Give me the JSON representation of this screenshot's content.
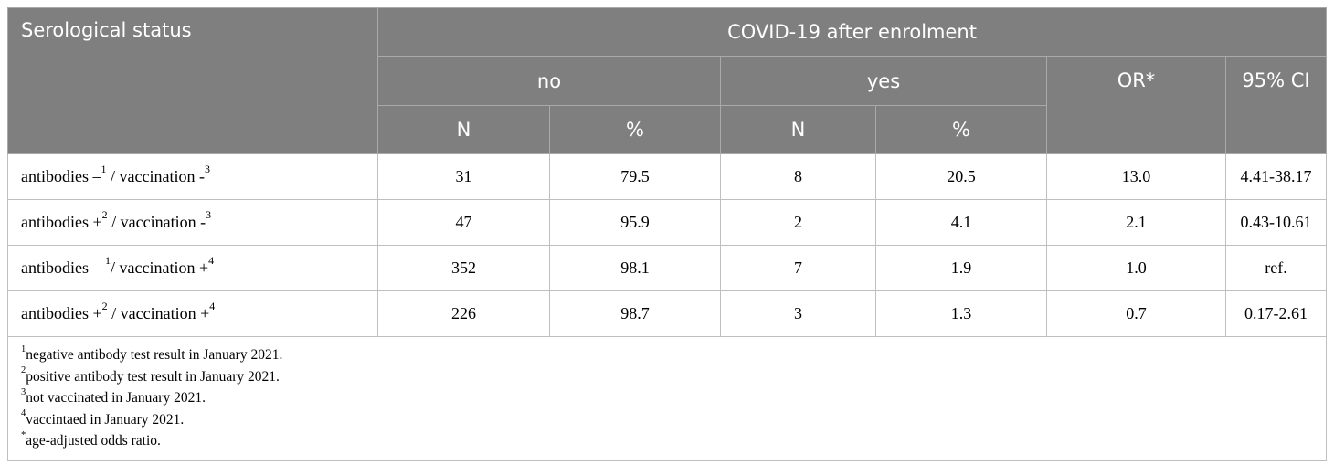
{
  "table": {
    "header": {
      "row_label": "Serological status",
      "group_label": "COVID-19 after enrolment",
      "no_label": "no",
      "yes_label": "yes",
      "or_label": "OR*",
      "ci_label": "95% CI",
      "n_label": "N",
      "pct_label": "%"
    },
    "rows": [
      {
        "ab": "antibodies –",
        "ab_sup": "1",
        "vac": " / vaccination -",
        "vac_sup": "3",
        "no_n": "31",
        "no_pct": "79.5",
        "yes_n": "8",
        "yes_pct": "20.5",
        "or": "13.0",
        "ci": "4.41-38.17"
      },
      {
        "ab": "antibodies +",
        "ab_sup": "2",
        "vac": " / vaccination -",
        "vac_sup": "3",
        "no_n": "47",
        "no_pct": "95.9",
        "yes_n": "2",
        "yes_pct": "4.1",
        "or": "2.1",
        "ci": "0.43-10.61"
      },
      {
        "ab": "antibodies – ",
        "ab_sup": "1",
        "vac": "/ vaccination +",
        "vac_sup": "4",
        "no_n": "352",
        "no_pct": "98.1",
        "yes_n": "7",
        "yes_pct": "1.9",
        "or": "1.0",
        "ci": "ref."
      },
      {
        "ab": "antibodies +",
        "ab_sup": "2",
        "vac": " / vaccination +",
        "vac_sup": "4",
        "no_n": "226",
        "no_pct": "98.7",
        "yes_n": "3",
        "yes_pct": "1.3",
        "or": "0.7",
        "ci": "0.17-2.61"
      }
    ],
    "footnotes": [
      {
        "mark": "1",
        "text": "negative antibody test result in January 2021."
      },
      {
        "mark": "2",
        "text": "positive antibody test result in January 2021."
      },
      {
        "mark": "3",
        "text": "not vaccinated in January 2021."
      },
      {
        "mark": "4",
        "text": "vaccintaed in January 2021."
      },
      {
        "mark": "*",
        "text": "age-adjusted odds ratio."
      }
    ]
  }
}
